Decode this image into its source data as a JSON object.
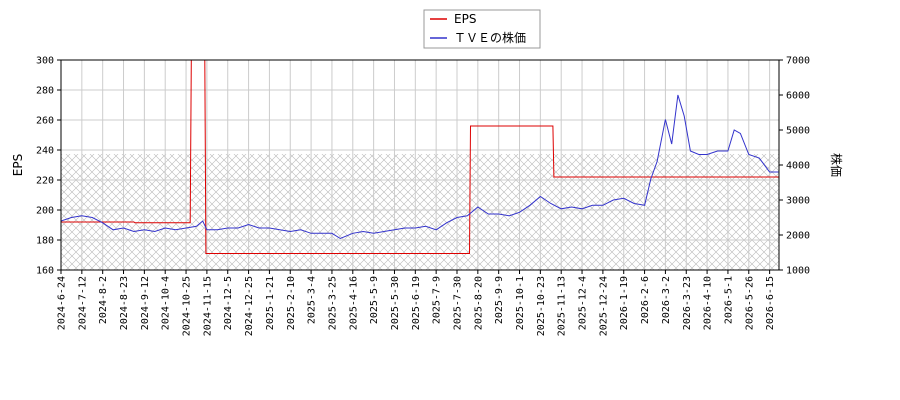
{
  "chart_data": {
    "type": "line",
    "x_tick_labels": [
      "2024-6-24",
      "2024-7-12",
      "2024-8-2",
      "2024-8-23",
      "2024-9-12",
      "2024-10-4",
      "2024-10-25",
      "2024-11-15",
      "2024-12-5",
      "2024-12-25",
      "2025-1-21",
      "2025-2-10",
      "2025-3-4",
      "2025-3-25",
      "2025-4-16",
      "2025-5-9",
      "2025-5-30",
      "2025-6-19",
      "2025-7-9",
      "2025-7-30",
      "2025-8-20",
      "2025-9-9",
      "2025-10-1",
      "2025-10-23",
      "2025-11-13",
      "2025-12-4",
      "2025-12-24",
      "2026-1-19",
      "2026-2-6",
      "2026-3-2",
      "2026-3-23",
      "2026-4-10",
      "2026-5-1",
      "2026-5-26",
      "2026-6-15"
    ],
    "y_left": {
      "label": "EPS",
      "ylim": [
        160,
        300
      ],
      "ticks": [
        160,
        180,
        200,
        220,
        240,
        260,
        280,
        300
      ]
    },
    "y_right": {
      "label": "株価",
      "ylim": [
        1000,
        7000
      ],
      "ticks": [
        1000,
        2000,
        3000,
        4000,
        5000,
        6000,
        7000
      ]
    },
    "legend": {
      "placement": "top-center",
      "entries": [
        "EPS",
        "ＴＶＥの株価"
      ]
    },
    "grid": true,
    "series": [
      {
        "name": "EPS",
        "axis": "left",
        "color": "#dd0000",
        "points": [
          [
            0,
            192
          ],
          [
            3.5,
            192
          ],
          [
            3.55,
            191.5
          ],
          [
            6.2,
            191.5
          ],
          [
            6.25,
            300
          ],
          [
            6.9,
            300
          ],
          [
            6.95,
            171
          ],
          [
            14,
            171
          ],
          [
            19.6,
            171
          ],
          [
            19.65,
            256
          ],
          [
            23.6,
            256
          ],
          [
            23.65,
            222
          ],
          [
            35,
            222
          ]
        ]
      },
      {
        "name": "ＴＶＥの株価",
        "axis": "right",
        "color": "#3333cc",
        "points": [
          [
            0,
            2400
          ],
          [
            0.5,
            2500
          ],
          [
            1,
            2550
          ],
          [
            1.5,
            2500
          ],
          [
            2,
            2350
          ],
          [
            2.5,
            2150
          ],
          [
            3,
            2200
          ],
          [
            3.5,
            2100
          ],
          [
            4,
            2150
          ],
          [
            4.5,
            2100
          ],
          [
            5,
            2200
          ],
          [
            5.5,
            2150
          ],
          [
            6,
            2200
          ],
          [
            6.5,
            2250
          ],
          [
            6.8,
            2400
          ],
          [
            7,
            2150
          ],
          [
            7.5,
            2150
          ],
          [
            8,
            2200
          ],
          [
            8.5,
            2200
          ],
          [
            9,
            2300
          ],
          [
            9.5,
            2200
          ],
          [
            10,
            2200
          ],
          [
            10.5,
            2150
          ],
          [
            11,
            2100
          ],
          [
            11.5,
            2150
          ],
          [
            12,
            2050
          ],
          [
            12.5,
            2050
          ],
          [
            13,
            2050
          ],
          [
            13.4,
            1900
          ],
          [
            14,
            2050
          ],
          [
            14.5,
            2100
          ],
          [
            15,
            2050
          ],
          [
            15.5,
            2100
          ],
          [
            16,
            2150
          ],
          [
            16.5,
            2200
          ],
          [
            17,
            2200
          ],
          [
            17.5,
            2250
          ],
          [
            18,
            2150
          ],
          [
            18.5,
            2350
          ],
          [
            19,
            2500
          ],
          [
            19.5,
            2550
          ],
          [
            20,
            2800
          ],
          [
            20.5,
            2600
          ],
          [
            21,
            2600
          ],
          [
            21.5,
            2550
          ],
          [
            22,
            2650
          ],
          [
            22.5,
            2850
          ],
          [
            23,
            3100
          ],
          [
            23.5,
            2900
          ],
          [
            24,
            2750
          ],
          [
            24.5,
            2800
          ],
          [
            25,
            2750
          ],
          [
            25.5,
            2850
          ],
          [
            26,
            2850
          ],
          [
            26.5,
            3000
          ],
          [
            27,
            3050
          ],
          [
            27.5,
            2900
          ],
          [
            28,
            2850
          ],
          [
            28.3,
            3600
          ],
          [
            28.6,
            4100
          ],
          [
            29,
            5300
          ],
          [
            29.3,
            4600
          ],
          [
            29.6,
            6000
          ],
          [
            29.9,
            5400
          ],
          [
            30.2,
            4400
          ],
          [
            30.6,
            4300
          ],
          [
            31,
            4300
          ],
          [
            31.5,
            4400
          ],
          [
            32,
            4400
          ],
          [
            32.3,
            5000
          ],
          [
            32.6,
            4900
          ],
          [
            33,
            4300
          ],
          [
            33.5,
            4200
          ],
          [
            34,
            3800
          ],
          [
            34.5,
            3800
          ],
          [
            35,
            4600
          ]
        ]
      }
    ]
  }
}
